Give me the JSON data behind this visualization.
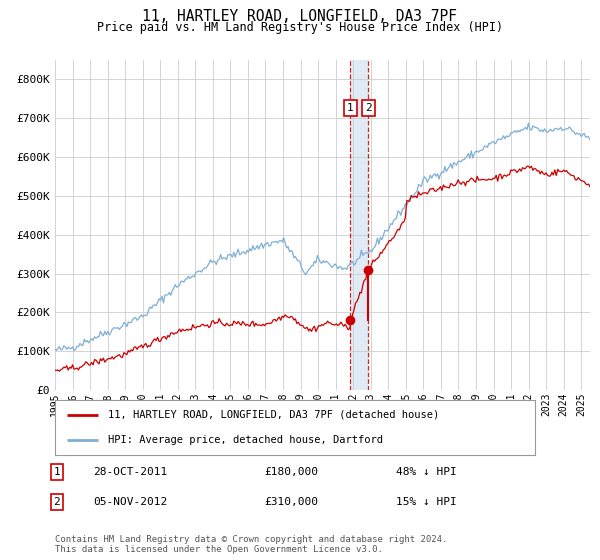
{
  "title": "11, HARTLEY ROAD, LONGFIELD, DA3 7PF",
  "subtitle": "Price paid vs. HM Land Registry's House Price Index (HPI)",
  "hpi_color": "#7fafd4",
  "price_color": "#cc0000",
  "background_color": "#ffffff",
  "grid_color": "#cccccc",
  "sale1_date_num": 2011.83,
  "sale2_date_num": 2012.87,
  "sale1_price": 180000,
  "sale2_price": 310000,
  "ylim": [
    0,
    850000
  ],
  "xlim_start": 1995.0,
  "xlim_end": 2025.5,
  "legend_price_label": "11, HARTLEY ROAD, LONGFIELD, DA3 7PF (detached house)",
  "legend_hpi_label": "HPI: Average price, detached house, Dartford",
  "annotation1_date": "28-OCT-2011",
  "annotation1_price": "£180,000",
  "annotation1_hpi": "48% ↓ HPI",
  "annotation2_date": "05-NOV-2012",
  "annotation2_price": "£310,000",
  "annotation2_hpi": "15% ↓ HPI",
  "footnote": "Contains HM Land Registry data © Crown copyright and database right 2024.\nThis data is licensed under the Open Government Licence v3.0.",
  "yticks": [
    0,
    100000,
    200000,
    300000,
    400000,
    500000,
    600000,
    700000,
    800000
  ],
  "ytick_labels": [
    "£0",
    "£100K",
    "£200K",
    "£300K",
    "£400K",
    "£500K",
    "£600K",
    "£700K",
    "£800K"
  ],
  "xticks": [
    1995,
    1996,
    1997,
    1998,
    1999,
    2000,
    2001,
    2002,
    2003,
    2004,
    2005,
    2006,
    2007,
    2008,
    2009,
    2010,
    2011,
    2012,
    2013,
    2014,
    2015,
    2016,
    2017,
    2018,
    2019,
    2020,
    2021,
    2022,
    2023,
    2024,
    2025
  ]
}
